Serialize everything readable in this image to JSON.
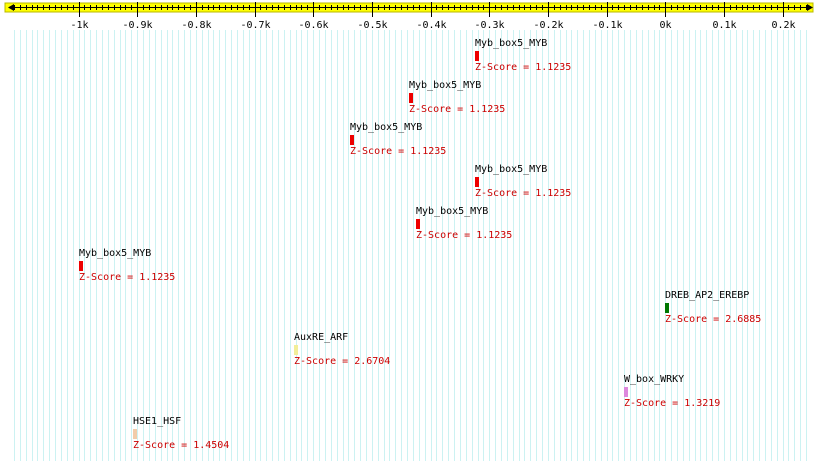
{
  "axis": {
    "ticks": [
      {
        "value": -1000,
        "label": "-1k"
      },
      {
        "value": -900,
        "label": "-0.9k"
      },
      {
        "value": -800,
        "label": "-0.8k"
      },
      {
        "value": -700,
        "label": "-0.7k"
      },
      {
        "value": -600,
        "label": "-0.6k"
      },
      {
        "value": -500,
        "label": "-0.5k"
      },
      {
        "value": -400,
        "label": "-0.4k"
      },
      {
        "value": -300,
        "label": "-0.3k"
      },
      {
        "value": -200,
        "label": "-0.2k"
      },
      {
        "value": -100,
        "label": "-0.1k"
      },
      {
        "value": 0,
        "label": "0k"
      },
      {
        "value": 100,
        "label": "0.1k"
      },
      {
        "value": 200,
        "label": "0.2k"
      }
    ],
    "range": [
      -1110,
      245
    ],
    "bar_color": "#ffff00"
  },
  "sites": [
    {
      "name": "Myb_box5_MYB",
      "score_text": "Z-Score = 1.1235",
      "position": -325,
      "color": "#ee0000"
    },
    {
      "name": "Myb_box5_MYB",
      "score_text": "Z-Score = 1.1235",
      "position": -437,
      "color": "#ee0000"
    },
    {
      "name": "Myb_box5_MYB",
      "score_text": "Z-Score = 1.1235",
      "position": -538,
      "color": "#ee0000"
    },
    {
      "name": "Myb_box5_MYB",
      "score_text": "Z-Score = 1.1235",
      "position": -325,
      "color": "#ee0000"
    },
    {
      "name": "Myb_box5_MYB",
      "score_text": "Z-Score = 1.1235",
      "position": -424,
      "color": "#ee0000"
    },
    {
      "name": "Myb_box5_MYB",
      "score_text": "Z-Score = 1.1235",
      "position": -1000,
      "color": "#ee0000"
    },
    {
      "name": "DREB_AP2_EREBP",
      "score_text": "Z-Score = 2.6885",
      "position": 0,
      "color": "#007700"
    },
    {
      "name": "AuxRE_ARF",
      "score_text": "Z-Score = 2.6704",
      "position": -633,
      "color": "#f2ee99"
    },
    {
      "name": "W_box_WRKY",
      "score_text": "Z-Score = 1.3219",
      "position": -71,
      "color": "#dd88dd"
    },
    {
      "name": "HSE1_HSF",
      "score_text": "Z-Score = 1.4504",
      "position": -908,
      "color": "#f2ccaa"
    }
  ]
}
